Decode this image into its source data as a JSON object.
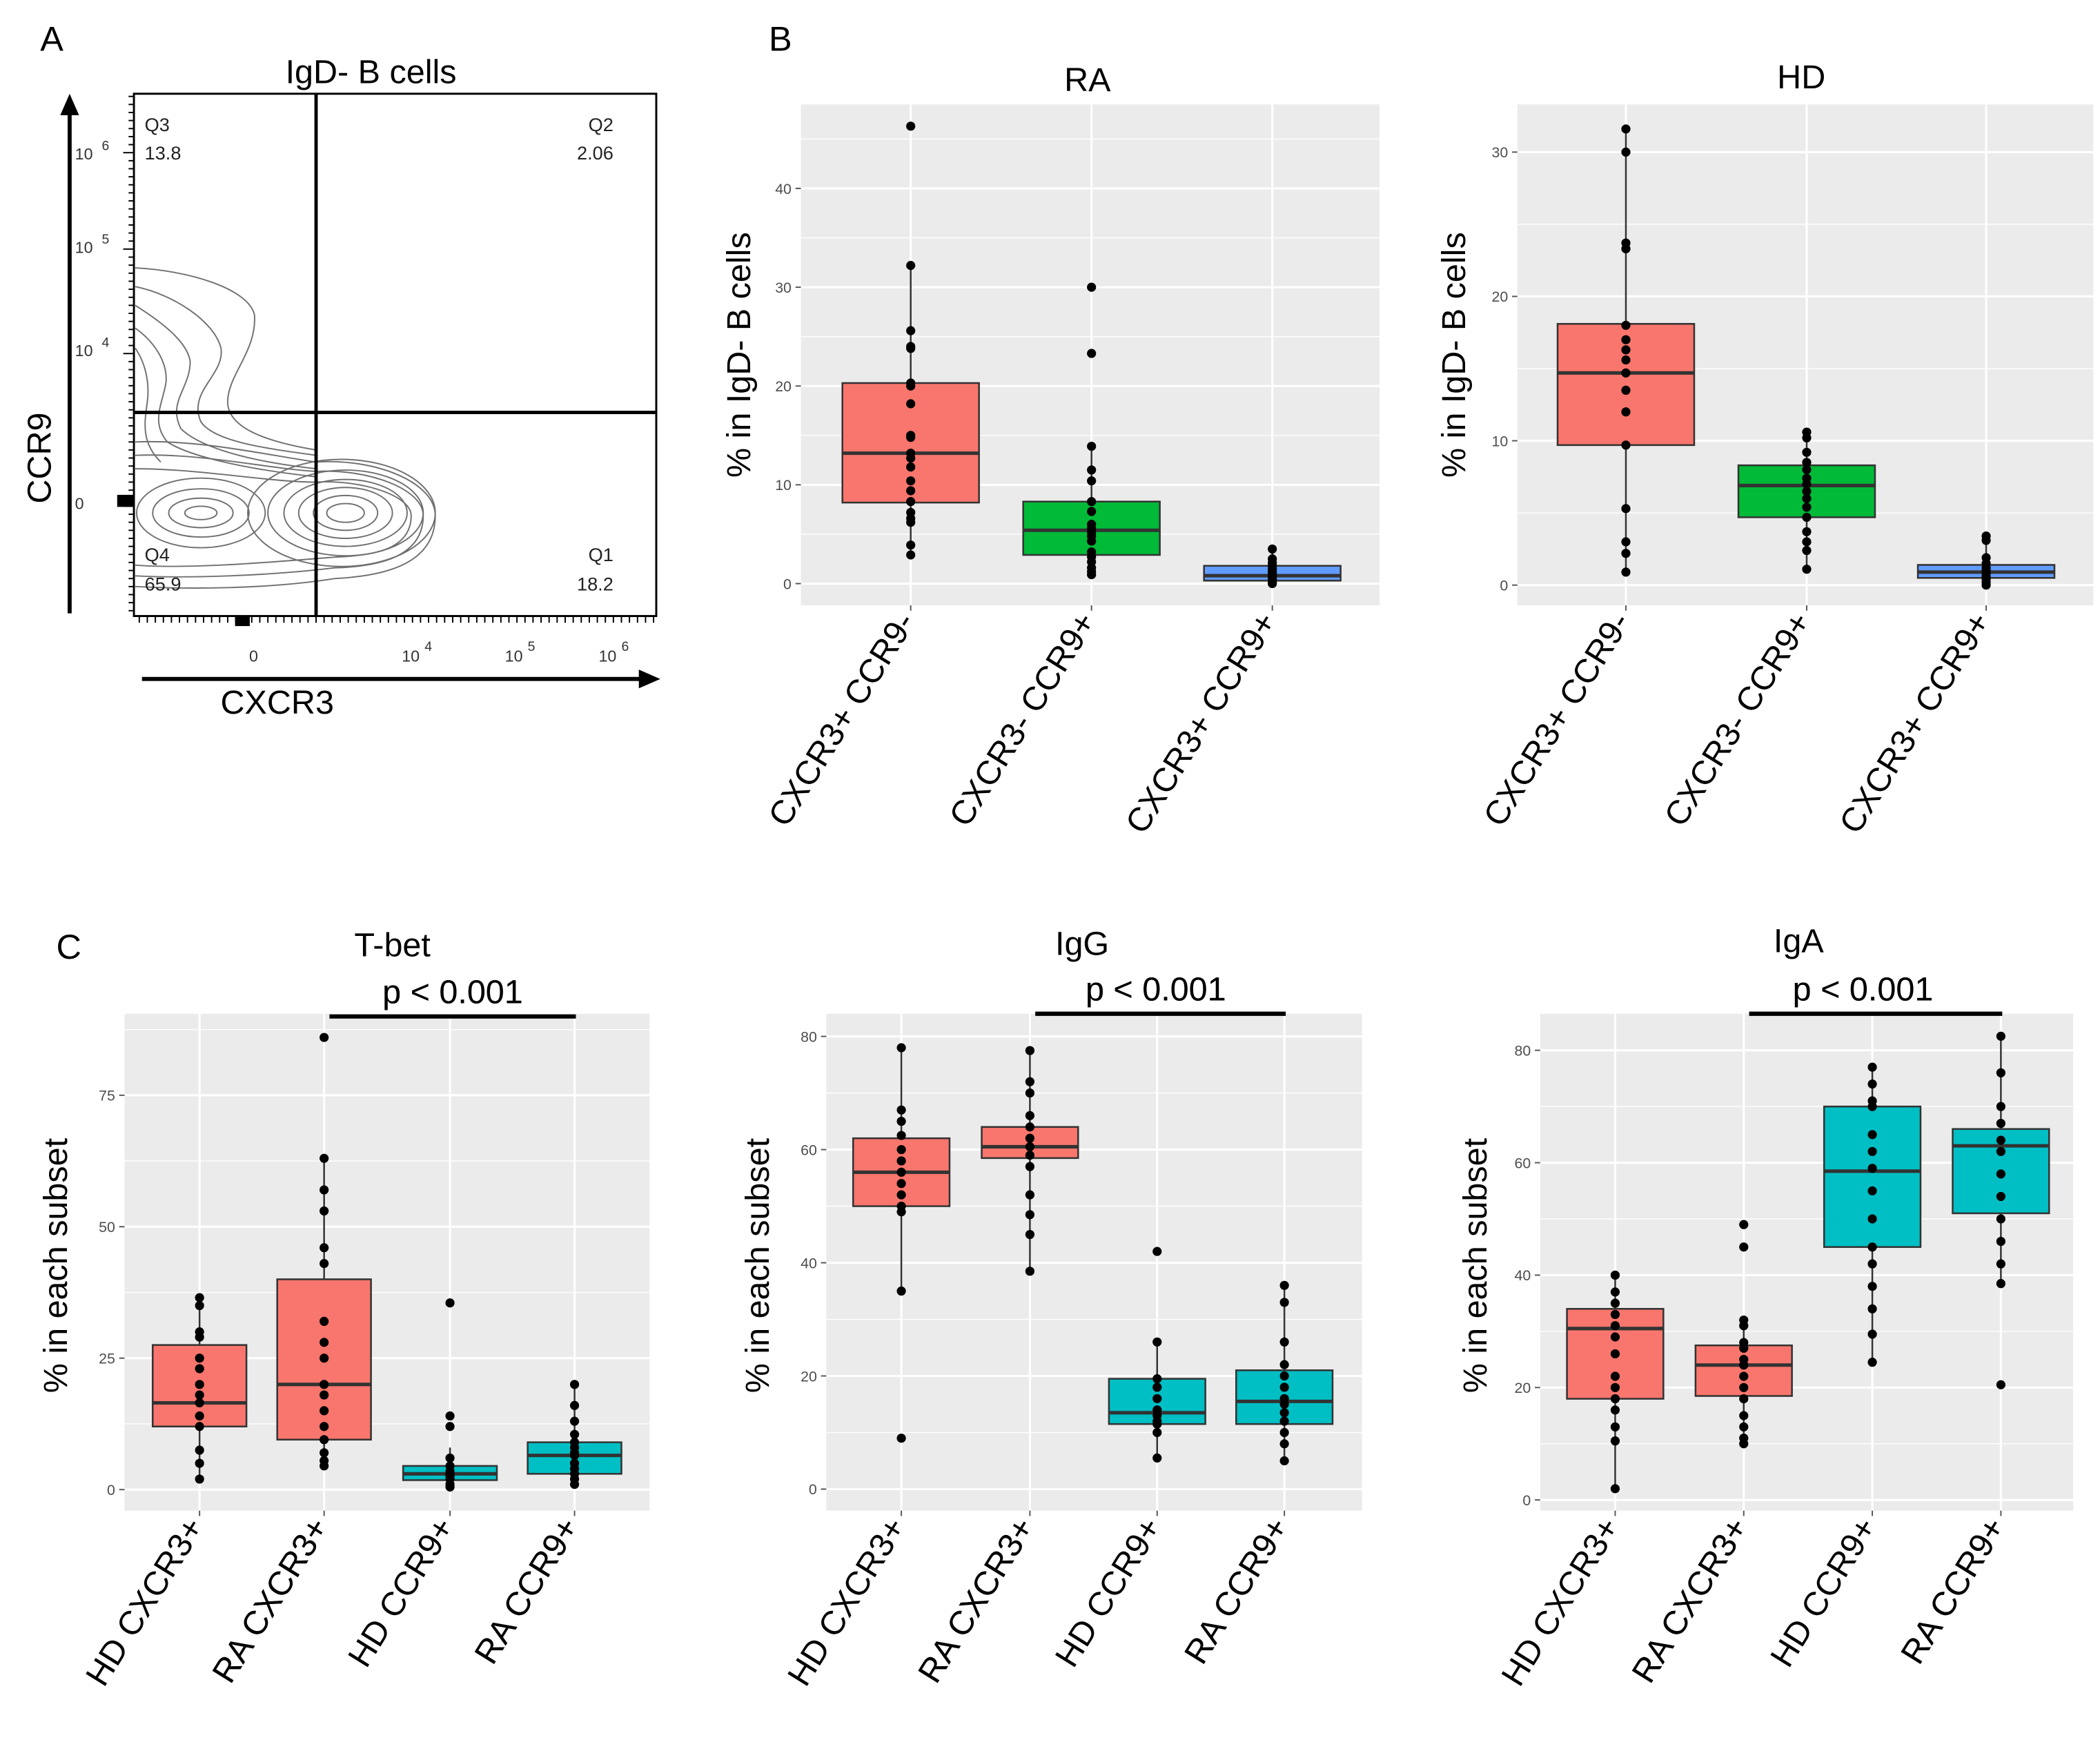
{
  "panel_labels": {
    "a": "A",
    "b": "B",
    "c": "C"
  },
  "colors": {
    "panel_bg": "#EBEBEB",
    "grid": "#FFFFFF",
    "red": "#F8766D",
    "green": "#00BA38",
    "blue": "#619CFF",
    "teal": "#00BFC4",
    "point": "#000000"
  },
  "chart_data": [
    {
      "id": "flow",
      "type": "contour",
      "title": "IgD- B cells",
      "xlabel": "CXCR3",
      "ylabel": "CCR9",
      "xticks": [
        "0",
        "10",
        "10",
        "10"
      ],
      "xtick_exps": [
        "",
        "4",
        "5",
        "6"
      ],
      "yticks": [
        "10",
        "10",
        "10",
        "0"
      ],
      "ytick_exps": [
        "6",
        "5",
        "4",
        ""
      ],
      "quadrants": [
        {
          "name": "Q3",
          "value": "13.8"
        },
        {
          "name": "Q2",
          "value": "2.06"
        },
        {
          "name": "Q4",
          "value": "65.9"
        },
        {
          "name": "Q1",
          "value": "18.2"
        }
      ]
    },
    {
      "id": "ra",
      "type": "boxplot",
      "title": "RA",
      "ylabel": "% in IgD- B cells",
      "ylim": [
        -2.2,
        48.5
      ],
      "yticks": [
        0,
        10,
        20,
        30,
        40
      ],
      "grid": true,
      "categories": [
        "CXCR3+ CCR9-",
        "CXCR3- CCR9+",
        "CXCR3+ CCR9+"
      ],
      "fills": [
        "#F8766D",
        "#00BA38",
        "#619CFF"
      ],
      "boxes": [
        {
          "q1": 8.2,
          "median": 13.2,
          "q3": 20.3,
          "lo": 2.8,
          "hi": 32.2,
          "points": [
            46.3,
            32.2,
            25.6,
            24,
            23.8,
            20.3,
            20,
            18.2,
            15,
            14.8,
            13.2,
            12.7,
            11.8,
            10.4,
            9.4,
            8.3,
            7.2,
            6.6,
            6.2,
            3.9,
            2.9
          ]
        },
        {
          "q1": 2.9,
          "median": 5.4,
          "q3": 8.3,
          "lo": 0.9,
          "hi": 13.9,
          "points": [
            30,
            23.3,
            13.9,
            11.5,
            10.4,
            8.3,
            7.3,
            6,
            5.6,
            5.2,
            4.8,
            4.3,
            3.2,
            2.7,
            2.2,
            1.6,
            1.2,
            0.9
          ]
        },
        {
          "q1": 0.3,
          "median": 0.8,
          "q3": 1.8,
          "lo": 0,
          "hi": 3.5,
          "points": [
            3.5,
            2.5,
            2.1,
            1.8,
            1.5,
            1.2,
            1,
            0.8,
            0.5,
            0.3,
            0.1,
            0
          ]
        }
      ]
    },
    {
      "id": "hd",
      "type": "boxplot",
      "title": "HD",
      "ylabel": "% in IgD- B cells",
      "ylim": [
        -1.4,
        33.3
      ],
      "yticks": [
        0,
        10,
        20,
        30
      ],
      "grid": true,
      "categories": [
        "CXCR3+ CCR9-",
        "CXCR3- CCR9+",
        "CXCR3+ CCR9+"
      ],
      "fills": [
        "#F8766D",
        "#00BA38",
        "#619CFF"
      ],
      "boxes": [
        {
          "q1": 9.7,
          "median": 14.7,
          "q3": 18.1,
          "lo": 0.9,
          "hi": 31.6,
          "points": [
            31.6,
            30,
            23.7,
            23.3,
            18,
            17,
            16.3,
            15.6,
            14.7,
            13.5,
            12,
            9.7,
            5.3,
            3,
            2.2,
            0.9
          ]
        },
        {
          "q1": 4.7,
          "median": 6.9,
          "q3": 8.3,
          "lo": 1.1,
          "hi": 10.6,
          "points": [
            10.6,
            10.2,
            9.2,
            8.5,
            8,
            7.4,
            7,
            6.5,
            6,
            5.4,
            4.7,
            3.7,
            3,
            2.4,
            1.1
          ]
        },
        {
          "q1": 0.5,
          "median": 0.9,
          "q3": 1.4,
          "lo": 0,
          "hi": 3.4,
          "points": [
            3.4,
            3.1,
            1.9,
            1.5,
            1.2,
            1,
            0.8,
            0.6,
            0.4,
            0.2,
            0
          ]
        }
      ]
    },
    {
      "id": "tbet",
      "type": "boxplot",
      "title": "T-bet",
      "annotation": "p < 0.001",
      "ylabel": "% in each subset",
      "ylim": [
        -4,
        90.5
      ],
      "yticks": [
        0,
        25,
        50,
        75
      ],
      "grid": true,
      "categories": [
        "HD CXCR3+",
        "RA CXCR3+",
        "HD CCR9+",
        "RA CCR9+"
      ],
      "fills": [
        "#F8766D",
        "#F8766D",
        "#00BFC4",
        "#00BFC4"
      ],
      "significance": {
        "from": "RA CXCR3+",
        "to": "RA CCR9+",
        "label": "p < 0.001"
      },
      "boxes": [
        {
          "q1": 12,
          "median": 16.5,
          "q3": 27.5,
          "lo": 2,
          "hi": 36.5,
          "points": [
            36.5,
            35,
            30,
            29,
            25,
            23,
            20,
            18,
            16.5,
            14,
            12,
            7.5,
            5,
            2
          ]
        },
        {
          "q1": 9.5,
          "median": 20,
          "q3": 40,
          "lo": 4.5,
          "hi": 63,
          "points": [
            86,
            63,
            57,
            53,
            46,
            43,
            32,
            28,
            25,
            20,
            18,
            15,
            12,
            9.5,
            7,
            5.5,
            4.5
          ]
        },
        {
          "q1": 1.8,
          "median": 3,
          "q3": 4.5,
          "lo": 0,
          "hi": 8,
          "points": [
            35.5,
            14,
            12,
            6,
            4.5,
            3.5,
            3,
            2.5,
            2,
            1,
            0.5
          ]
        },
        {
          "q1": 3,
          "median": 6.5,
          "q3": 9,
          "lo": 1,
          "hi": 20,
          "points": [
            20,
            16,
            13,
            10.5,
            9,
            8,
            7,
            6.5,
            5,
            4,
            3,
            2,
            1
          ]
        }
      ]
    },
    {
      "id": "igg",
      "type": "boxplot",
      "title": "IgG",
      "annotation": "p < 0.001",
      "ylabel": "% in each subset",
      "ylim": [
        -3.8,
        84
      ],
      "yticks": [
        0,
        20,
        40,
        60,
        80
      ],
      "grid": true,
      "categories": [
        "HD CXCR3+",
        "RA CXCR3+",
        "HD CCR9+",
        "RA CCR9+"
      ],
      "fills": [
        "#F8766D",
        "#F8766D",
        "#00BFC4",
        "#00BFC4"
      ],
      "significance": {
        "from": "RA CXCR3+",
        "to": "RA CCR9+",
        "label": "p < 0.001"
      },
      "boxes": [
        {
          "q1": 50,
          "median": 56,
          "q3": 62,
          "lo": 35,
          "hi": 78,
          "points": [
            78,
            67,
            65,
            62.5,
            60,
            58,
            56,
            54,
            52,
            50,
            49,
            35,
            9
          ]
        },
        {
          "q1": 58.5,
          "median": 60.5,
          "q3": 64,
          "lo": 38.5,
          "hi": 77.5,
          "points": [
            77.5,
            72,
            70,
            66,
            64,
            62,
            60.5,
            59,
            57,
            52,
            48.5,
            45,
            38.5
          ]
        },
        {
          "q1": 11.5,
          "median": 13.5,
          "q3": 19.5,
          "lo": 5.5,
          "hi": 26,
          "points": [
            42,
            26,
            19.5,
            18,
            16,
            14,
            13,
            12,
            11.5,
            10,
            5.5
          ]
        },
        {
          "q1": 11.5,
          "median": 15.5,
          "q3": 21,
          "lo": 5,
          "hi": 36,
          "points": [
            36,
            33,
            26,
            22,
            20,
            18,
            16,
            15,
            13.5,
            12,
            10,
            8,
            5
          ]
        }
      ]
    },
    {
      "id": "iga",
      "type": "boxplot",
      "title": "IgA",
      "annotation": "p < 0.001",
      "ylabel": "% in each subset",
      "ylim": [
        -1.9,
        86.5
      ],
      "yticks": [
        0,
        20,
        40,
        60,
        80
      ],
      "grid": true,
      "categories": [
        "HD CXCR3+",
        "RA CXCR3+",
        "HD CCR9+",
        "RA CCR9+"
      ],
      "fills": [
        "#F8766D",
        "#F8766D",
        "#00BFC4",
        "#00BFC4"
      ],
      "significance": {
        "from": "RA CXCR3+",
        "to": "RA CCR9+",
        "label": "p < 0.001"
      },
      "boxes": [
        {
          "q1": 18,
          "median": 30.5,
          "q3": 34,
          "lo": 2,
          "hi": 40,
          "points": [
            40,
            37,
            35,
            33,
            31,
            29,
            26,
            22,
            20,
            18,
            16,
            13,
            10.5,
            2
          ]
        },
        {
          "q1": 18.5,
          "median": 24,
          "q3": 27.5,
          "lo": 10,
          "hi": 32,
          "points": [
            49,
            45,
            32,
            31,
            28,
            27,
            25,
            24,
            22,
            20,
            18,
            15,
            13,
            11,
            10
          ]
        },
        {
          "q1": 45,
          "median": 58.5,
          "q3": 70,
          "lo": 24.5,
          "hi": 77,
          "points": [
            77,
            74,
            71,
            70,
            65,
            62,
            59,
            55,
            50,
            45,
            42,
            38,
            34,
            29.5,
            24.5
          ]
        },
        {
          "q1": 51,
          "median": 63,
          "q3": 66,
          "lo": 38.5,
          "hi": 82.5,
          "points": [
            82.5,
            76,
            70,
            67,
            64,
            62,
            58,
            54,
            50,
            46,
            42,
            38.5,
            20.5
          ]
        }
      ]
    }
  ]
}
